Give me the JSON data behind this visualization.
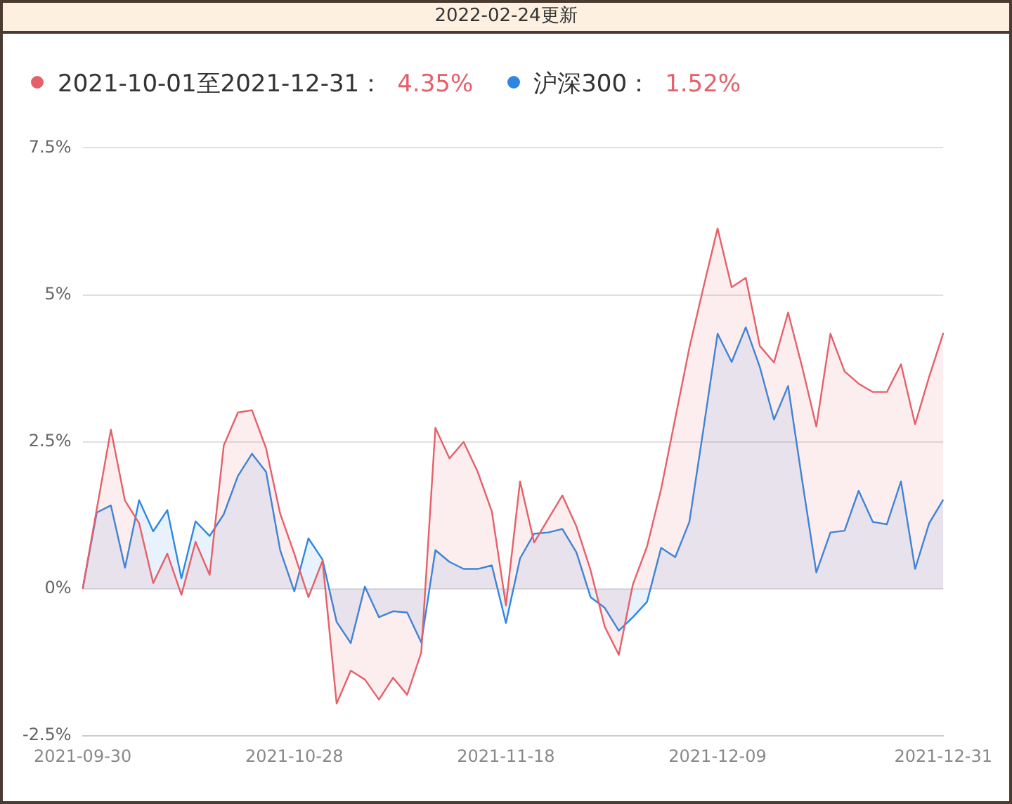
{
  "chart_data": {
    "type": "area",
    "title": "2022-02-24更新",
    "categories": [
      "2021-09-30",
      null,
      null,
      null,
      null,
      null,
      null,
      null,
      null,
      null,
      null,
      null,
      null,
      null,
      null,
      "2021-10-28",
      null,
      null,
      null,
      null,
      null,
      null,
      null,
      null,
      null,
      null,
      null,
      null,
      null,
      null,
      "2021-11-18",
      null,
      null,
      null,
      null,
      null,
      null,
      null,
      null,
      null,
      null,
      null,
      null,
      null,
      null,
      "2021-12-09",
      null,
      null,
      null,
      null,
      null,
      null,
      null,
      null,
      null,
      null,
      null,
      null,
      null,
      null,
      null,
      "2021-12-31"
    ],
    "series": [
      {
        "name": "2021-10-01至2021-12-31：",
        "color": "#e5606a",
        "values": [
          0,
          1.36,
          2.71,
          1.5,
          1.12,
          0.1,
          0.6,
          -0.1,
          0.8,
          0.24,
          2.44,
          3.0,
          3.04,
          2.39,
          1.28,
          0.6,
          -0.14,
          0.48,
          -1.95,
          -1.39,
          -1.54,
          -1.88,
          -1.51,
          -1.8,
          -1.08,
          2.74,
          2.22,
          2.5,
          1.99,
          1.32,
          -0.28,
          1.83,
          0.79,
          1.19,
          1.59,
          1.06,
          0.32,
          -0.64,
          -1.12,
          0.08,
          0.72,
          1.7,
          2.9,
          4.1,
          5.13,
          6.13,
          5.13,
          5.29,
          4.13,
          3.85,
          4.7,
          3.77,
          2.76,
          4.34,
          3.7,
          3.49,
          3.35,
          3.35,
          3.82,
          2.8,
          3.61,
          4.35
        ]
      },
      {
        "name": "沪深300：",
        "color": "#2d87e2",
        "values": [
          0,
          1.3,
          1.42,
          0.36,
          1.51,
          0.98,
          1.34,
          0.18,
          1.15,
          0.9,
          1.27,
          1.92,
          2.3,
          1.99,
          0.66,
          -0.04,
          0.86,
          0.5,
          -0.56,
          -0.92,
          0.04,
          -0.48,
          -0.38,
          -0.4,
          -0.91,
          0.66,
          0.46,
          0.34,
          0.34,
          0.4,
          -0.58,
          0.52,
          0.94,
          0.96,
          1.02,
          0.62,
          -0.14,
          -0.32,
          -0.71,
          -0.48,
          -0.22,
          0.7,
          0.54,
          1.14,
          2.72,
          4.34,
          3.86,
          4.45,
          3.77,
          2.88,
          3.45,
          1.84,
          0.28,
          0.96,
          0.99,
          1.67,
          1.14,
          1.1,
          1.83,
          0.34,
          1.12,
          1.52
        ]
      }
    ],
    "annotations": [
      "4.35%",
      "1.52%"
    ],
    "ylim": [
      -2.5,
      7.5
    ],
    "yticks": [
      {
        "value": -2.5,
        "label": "-2.5%"
      },
      {
        "value": 0,
        "label": "0%"
      },
      {
        "value": 2.5,
        "label": "2.5%"
      },
      {
        "value": 5,
        "label": "5%"
      },
      {
        "value": 7.5,
        "label": "7.5%"
      }
    ],
    "grid": "y",
    "legend": "top",
    "marker": "none",
    "line_style": "solid"
  }
}
